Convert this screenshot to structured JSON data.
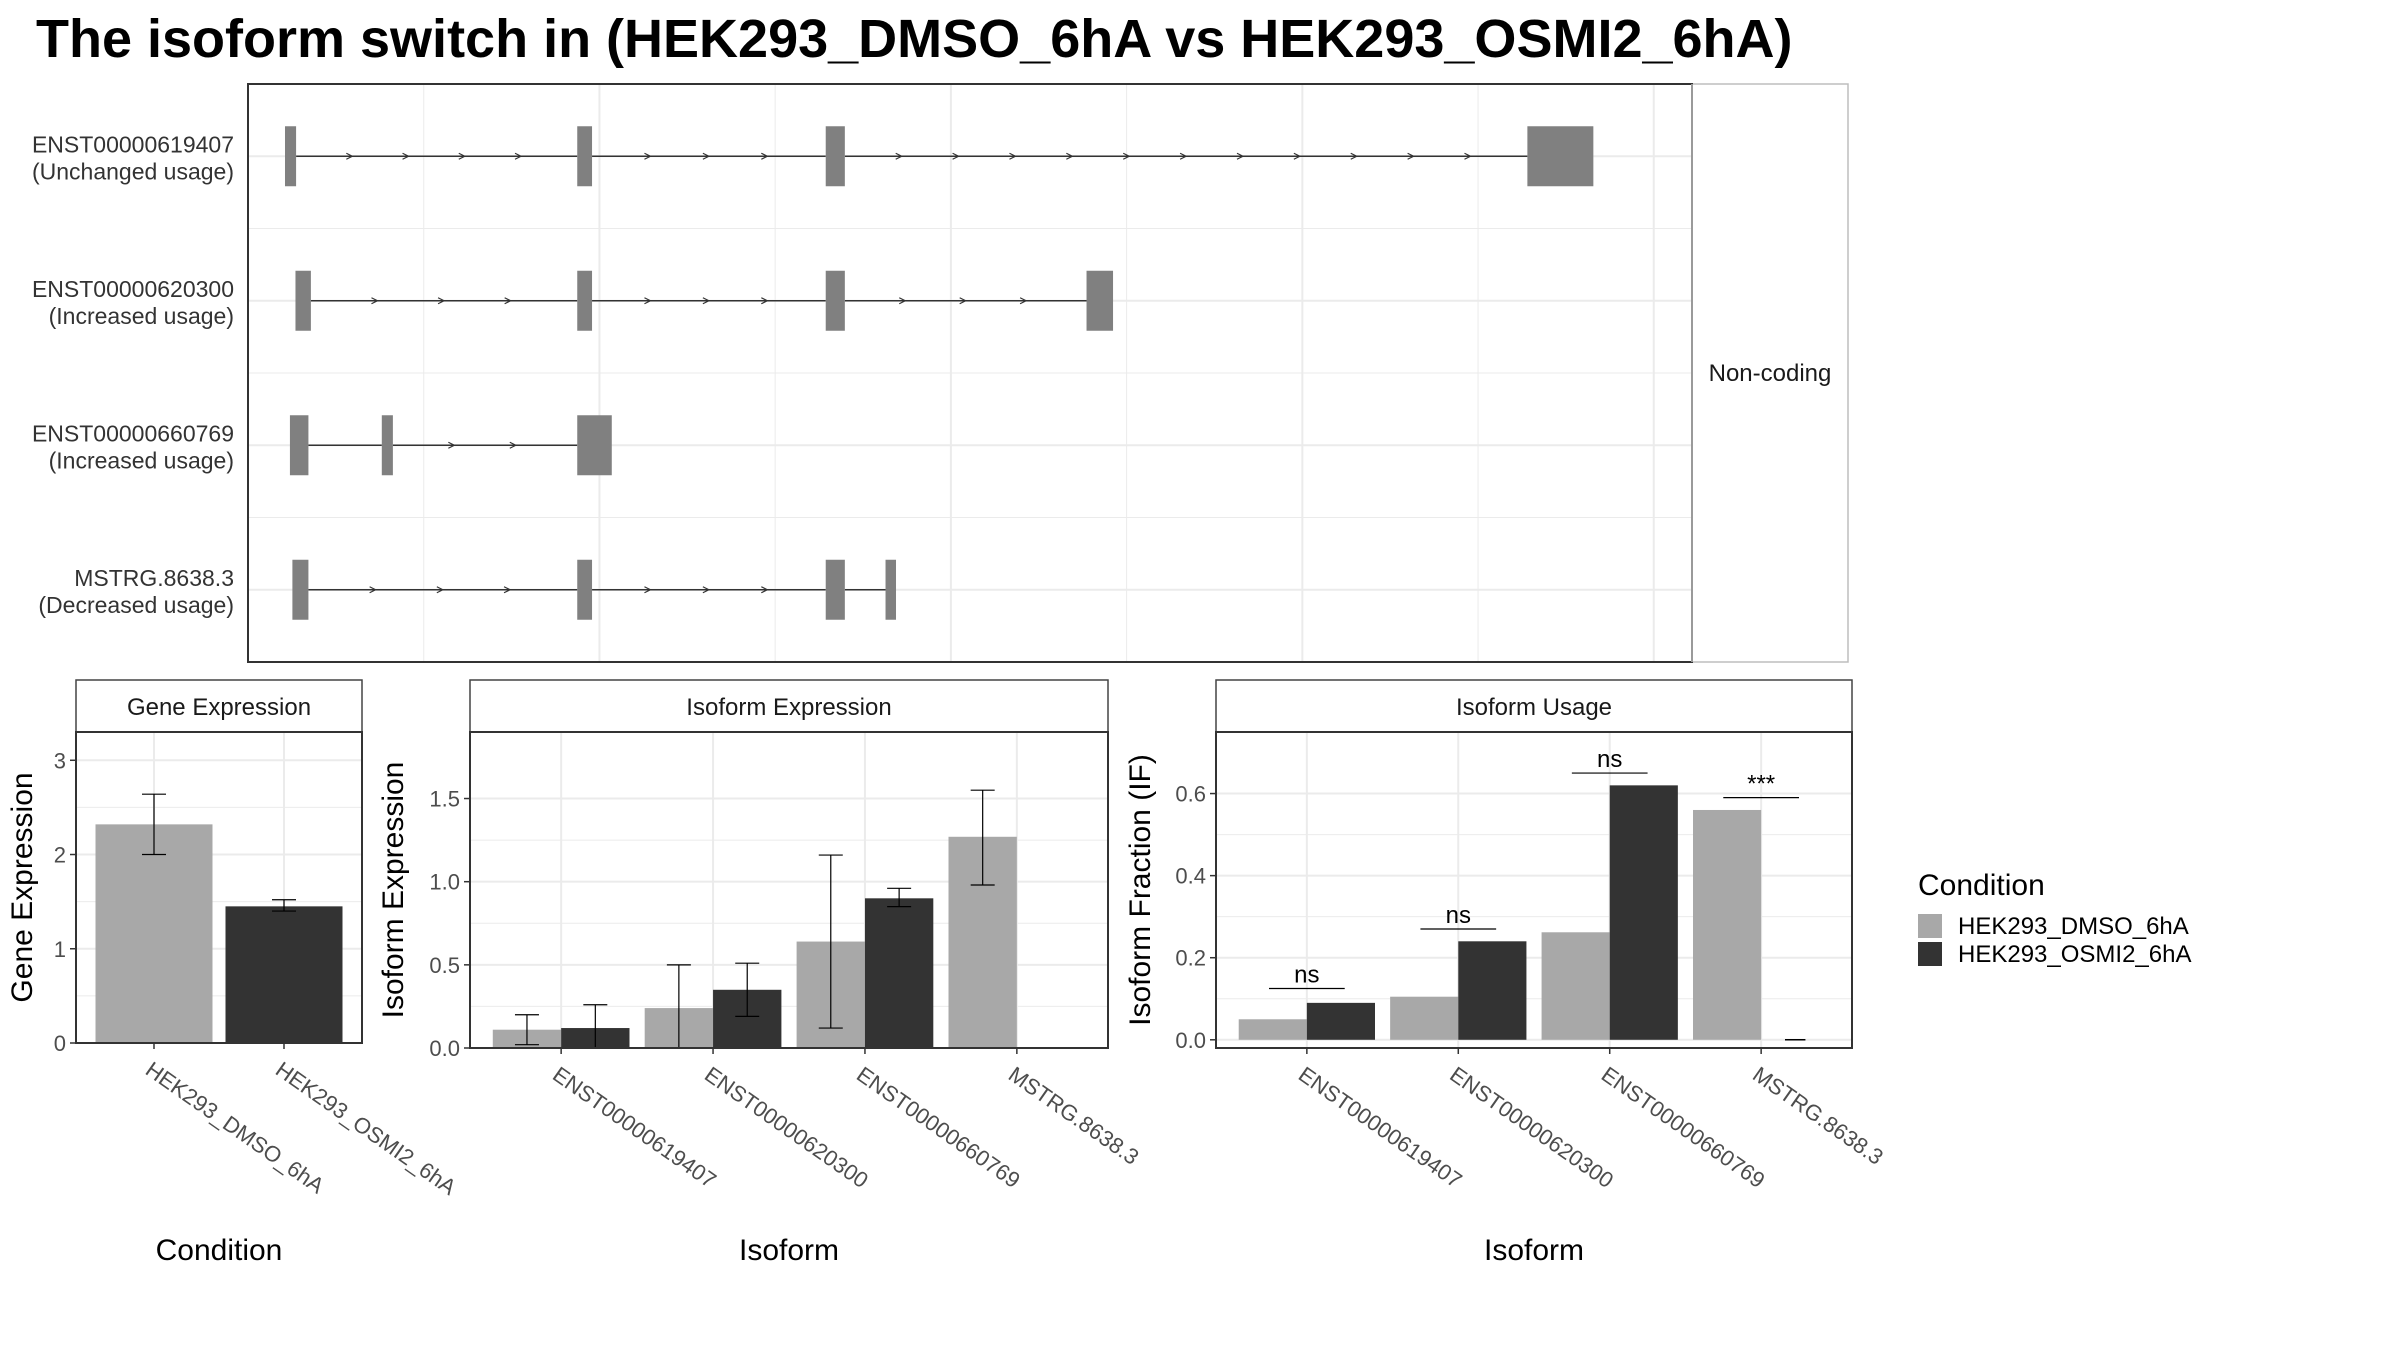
{
  "title": "The isoform switch in  (HEK293_DMSO_6hA vs HEK293_OSMI2_6hA)",
  "colors": {
    "dmso": "#a8a8a8",
    "osmi2": "#333333",
    "exon": "#808080",
    "grid": "#ebebeb",
    "panel_border": "#333333",
    "strip_border": "#444444"
  },
  "structure_panel": {
    "strip_label": "Non-coding",
    "isoforms": [
      {
        "id": "ENST00000619407",
        "usage": "(Unchanged usage)",
        "exons": [
          [
            0,
            18
          ],
          [
            474,
            498
          ],
          [
            877,
            908
          ],
          [
            2015,
            2122
          ]
        ]
      },
      {
        "id": "ENST00000620300",
        "usage": "(Increased usage)",
        "exons": [
          [
            17,
            42
          ],
          [
            474,
            498
          ],
          [
            877,
            908
          ],
          [
            1300,
            1343
          ]
        ]
      },
      {
        "id": "ENST00000660769",
        "usage": "(Increased usage)",
        "exons": [
          [
            8,
            38
          ],
          [
            157,
            175
          ],
          [
            474,
            530
          ]
        ]
      },
      {
        "id": "MSTRG.8638.3",
        "usage": "(Decreased usage)",
        "exons": [
          [
            12,
            38
          ],
          [
            474,
            498
          ],
          [
            877,
            908
          ],
          [
            974,
            991
          ]
        ]
      }
    ]
  },
  "chart_data": [
    {
      "type": "bar",
      "title": "Gene Expression",
      "xlabel": "Condition",
      "ylabel": "Gene Expression",
      "ylim": [
        0,
        3.3
      ],
      "yticks": [
        "0",
        "1",
        "2",
        "3"
      ],
      "categories": [
        "HEK293_DMSO_6hA",
        "HEK293_OSMI2_6hA"
      ],
      "values": [
        2.32,
        1.45
      ],
      "errors": [
        [
          2.0,
          2.64
        ],
        [
          1.4,
          1.52
        ]
      ],
      "grid": true
    },
    {
      "type": "bar",
      "title": "Isoform Expression",
      "xlabel": "Isoform",
      "ylabel": "Isoform Expression",
      "ylim": [
        0,
        1.9
      ],
      "yticks": [
        "0.0",
        "0.5",
        "1.0",
        "1.5"
      ],
      "categories": [
        "ENST00000619407",
        "ENST00000620300",
        "ENST00000660769",
        "MSTRG.8638.3"
      ],
      "series": [
        {
          "name": "HEK293_DMSO_6hA",
          "values": [
            0.11,
            0.24,
            0.64,
            1.27
          ],
          "errors": [
            [
              0.02,
              0.2
            ],
            [
              0.0,
              0.5
            ],
            [
              0.12,
              1.16
            ],
            [
              0.98,
              1.55
            ]
          ]
        },
        {
          "name": "HEK293_OSMI2_6hA",
          "values": [
            0.12,
            0.35,
            0.9,
            0.0
          ],
          "errors": [
            [
              0.0,
              0.26
            ],
            [
              0.19,
              0.51
            ],
            [
              0.85,
              0.96
            ],
            [
              0.0,
              0.0
            ]
          ]
        }
      ],
      "grid": true
    },
    {
      "type": "bar",
      "title": "Isoform Usage",
      "xlabel": "Isoform",
      "ylabel": "Isoform Fraction (IF)",
      "ylim": [
        -0.02,
        0.75
      ],
      "yticks": [
        "0.0",
        "0.2",
        "0.4",
        "0.6"
      ],
      "categories": [
        "ENST00000619407",
        "ENST00000620300",
        "ENST00000660769",
        "MSTRG.8638.3"
      ],
      "series": [
        {
          "name": "HEK293_DMSO_6hA",
          "values": [
            0.05,
            0.105,
            0.262,
            0.56
          ]
        },
        {
          "name": "HEK293_OSMI2_6hA",
          "values": [
            0.09,
            0.24,
            0.62,
            0.0
          ]
        }
      ],
      "significance": [
        {
          "label": "ns",
          "y": 0.125
        },
        {
          "label": "ns",
          "y": 0.27
        },
        {
          "label": "ns",
          "y": 0.65
        },
        {
          "label": "***",
          "y": 0.59
        }
      ],
      "grid": true
    }
  ],
  "legend": {
    "title": "Condition",
    "entries": [
      "HEK293_DMSO_6hA",
      "HEK293_OSMI2_6hA"
    ]
  }
}
